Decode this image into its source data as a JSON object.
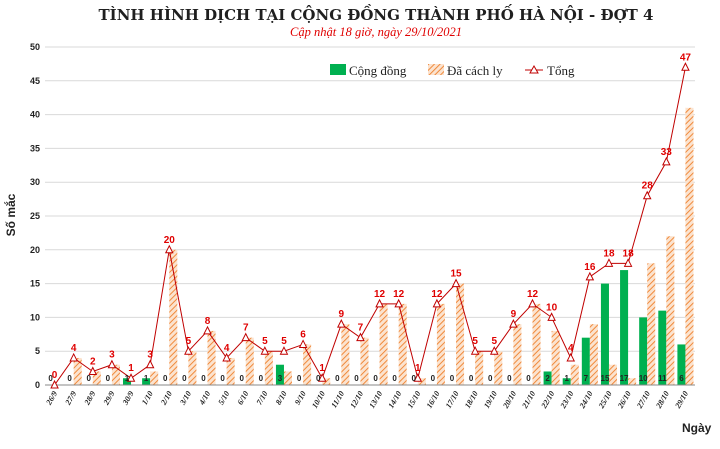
{
  "chart_data": {
    "type": "bar",
    "title": "TÌNH HÌNH DỊCH TẠI CỘNG ĐỒNG THÀNH PHỐ HÀ NỘI - ĐỢT 4",
    "subtitle": "Cập nhật 18 giờ, ngày 29/10/2021",
    "xlabel": "Ngày",
    "ylabel": "Số mắc",
    "ylim": [
      0,
      50
    ],
    "yticks": [
      0,
      5,
      10,
      15,
      20,
      25,
      30,
      35,
      40,
      45,
      50
    ],
    "legend_position": "top-right",
    "categories": [
      "26/9",
      "27/9",
      "28/9",
      "29/9",
      "30/9",
      "1/10",
      "2/10",
      "3/10",
      "4/10",
      "5/10",
      "6/10",
      "7/10",
      "8/10",
      "9/10",
      "10/10",
      "11/10",
      "12/10",
      "13/10",
      "14/10",
      "15/10",
      "16/10",
      "17/10",
      "18/10",
      "19/10",
      "20/10",
      "21/10",
      "22/10",
      "23/10",
      "24/10",
      "25/10",
      "26/10",
      "27/10",
      "28/10",
      "29/10"
    ],
    "series": [
      {
        "name": "Cộng đồng",
        "kind": "bar",
        "color": "#00b050",
        "values": [
          0,
          0,
          0,
          0,
          1,
          1,
          0,
          0,
          0,
          0,
          0,
          0,
          3,
          0,
          0,
          0,
          0,
          0,
          0,
          0,
          0,
          0,
          0,
          0,
          0,
          0,
          2,
          1,
          7,
          15,
          17,
          10,
          11,
          6
        ]
      },
      {
        "name": "Đã cách ly",
        "kind": "bar",
        "color": "#f4b183",
        "hatch": true,
        "values": [
          0,
          4,
          2,
          3,
          0,
          2,
          20,
          5,
          8,
          4,
          7,
          5,
          2,
          6,
          1,
          9,
          7,
          12,
          12,
          1,
          12,
          15,
          5,
          5,
          9,
          12,
          8,
          3,
          9,
          3,
          1,
          18,
          22,
          41
        ]
      },
      {
        "name": "Tổng",
        "kind": "line",
        "color": "#c00000",
        "marker": "triangle",
        "values": [
          0,
          4,
          2,
          3,
          1,
          3,
          20,
          5,
          8,
          4,
          7,
          5,
          5,
          6,
          1,
          9,
          7,
          12,
          12,
          1,
          12,
          15,
          5,
          5,
          9,
          12,
          10,
          4,
          16,
          18,
          18,
          28,
          33,
          47
        ]
      }
    ]
  }
}
